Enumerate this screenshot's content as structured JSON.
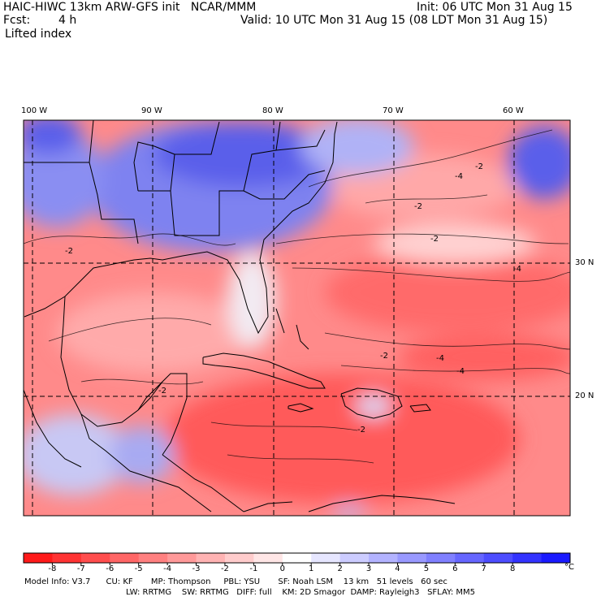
{
  "header": {
    "model_title": "HAIC-HIWC 13km ARW-GFS init   NCAR/MMM",
    "forecast_label": "Fcst:",
    "forecast_hours": "4 h",
    "field_name": "Lifted index",
    "init_time": "Init: 06 UTC Mon 31 Aug 15",
    "valid_time": "Valid: 10 UTC Mon 31 Aug 15 (08 LDT Mon 31 Aug 15)"
  },
  "map": {
    "lon_labels": [
      "100 W",
      "90 W",
      "80 W",
      "70 W",
      "60 W"
    ],
    "lat_labels": [
      "30 N",
      "20 N"
    ],
    "contour_labels": [
      "-2",
      "-2",
      "-2",
      "-4",
      "-2",
      "-2",
      "-4",
      "-4",
      "-2",
      "-4",
      "-2"
    ]
  },
  "colorbar": {
    "labels": [
      "-8",
      "-7",
      "-6",
      "-5",
      "-4",
      "-3",
      "-2",
      "-1",
      "0",
      "1",
      "2",
      "3",
      "4",
      "5",
      "6",
      "7",
      "8"
    ],
    "unit": "°C",
    "colors": [
      "#ff1a1a",
      "#ff3333",
      "#ff4d4d",
      "#ff6666",
      "#ff8080",
      "#ff9999",
      "#ffb3b3",
      "#ffcccc",
      "#ffe6e6",
      "#ffffff",
      "#e6e6ff",
      "#ccccff",
      "#b3b3ff",
      "#9999ff",
      "#8080ff",
      "#6666ff",
      "#4d4dff",
      "#3333ff",
      "#1a1aff"
    ]
  },
  "footer": {
    "line1": "Model Info: V3.7      CU: KF       MP: Thompson     PBL: YSU       SF: Noah LSM    13 km   51 levels   60 sec",
    "line2": "LW: RRTMG    SW: RRTMG   DIFF: full    KM: 2D Smagor  DAMP: Rayleigh3   SFLAY: MM5"
  }
}
